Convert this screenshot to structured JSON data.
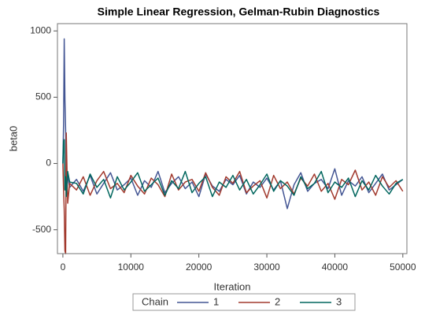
{
  "chart_data": {
    "type": "line",
    "title": "Simple Linear Regression, Gelman-Rubin Diagnostics",
    "x_label": "Iteration",
    "y_label": "beta0",
    "legend_title": "Chain",
    "x": [
      0,
      100,
      200,
      300,
      400,
      500,
      700,
      1000,
      2000,
      3000,
      4000,
      5000,
      6000,
      7000,
      8000,
      9000,
      10000,
      11000,
      12000,
      13000,
      14000,
      15000,
      16000,
      17000,
      18000,
      19000,
      20000,
      21000,
      22000,
      23000,
      24000,
      25000,
      26000,
      27000,
      28000,
      29000,
      30000,
      31000,
      32000,
      33000,
      34000,
      35000,
      36000,
      37000,
      38000,
      39000,
      40000,
      41000,
      42000,
      43000,
      44000,
      45000,
      46000,
      47000,
      48000,
      49000,
      50000
    ],
    "series": [
      {
        "name": "1",
        "color": "#445694",
        "values": [
          0,
          300,
          940,
          480,
          250,
          -150,
          -100,
          -180,
          -120,
          -210,
          -90,
          -230,
          -150,
          -70,
          -200,
          -160,
          -110,
          -240,
          -130,
          -180,
          -60,
          -220,
          -150,
          -100,
          -190,
          -140,
          -250,
          -80,
          -170,
          -210,
          -120,
          -160,
          -90,
          -230,
          -140,
          -180,
          -110,
          -200,
          -130,
          -340,
          -160,
          -70,
          -210,
          -150,
          -120,
          -190,
          -40,
          -240,
          -130,
          -170,
          -100,
          -220,
          -150,
          -80,
          -200,
          -160,
          -120
        ]
      },
      {
        "name": "2",
        "color": "#a23a2e",
        "values": [
          0,
          -200,
          -350,
          -660,
          -680,
          230,
          -300,
          -150,
          -200,
          -100,
          -240,
          -130,
          -60,
          -190,
          -150,
          -220,
          -90,
          -170,
          -230,
          -110,
          -160,
          -250,
          -80,
          -200,
          -140,
          -120,
          -210,
          -70,
          -180,
          -240,
          -100,
          -150,
          -60,
          -220,
          -170,
          -130,
          -260,
          -90,
          -190,
          -140,
          -230,
          -110,
          -170,
          -80,
          -210,
          -150,
          -270,
          -120,
          -160,
          -50,
          -200,
          -140,
          -240,
          -100,
          -180,
          -130,
          -210
        ]
      },
      {
        "name": "3",
        "color": "#01665e",
        "values": [
          0,
          170,
          180,
          -200,
          -100,
          -250,
          -60,
          -140,
          -150,
          -230,
          -80,
          -180,
          -120,
          -260,
          -100,
          -200,
          -140,
          -70,
          -210,
          -160,
          -110,
          -240,
          -130,
          -190,
          -60,
          -220,
          -150,
          -100,
          -250,
          -140,
          -180,
          -90,
          -200,
          -120,
          -230,
          -160,
          -80,
          -210,
          -130,
          -170,
          -240,
          -100,
          -190,
          -150,
          -60,
          -220,
          -140,
          -180,
          -110,
          -250,
          -130,
          -200,
          -90,
          -170,
          -230,
          -150,
          -120
        ]
      }
    ],
    "xlim": [
      -800,
      50600
    ],
    "ylim": [
      -680,
      1055
    ],
    "xticks": [
      0,
      10000,
      20000,
      30000,
      40000,
      50000
    ],
    "yticks": [
      -500,
      0,
      500,
      1000
    ]
  }
}
